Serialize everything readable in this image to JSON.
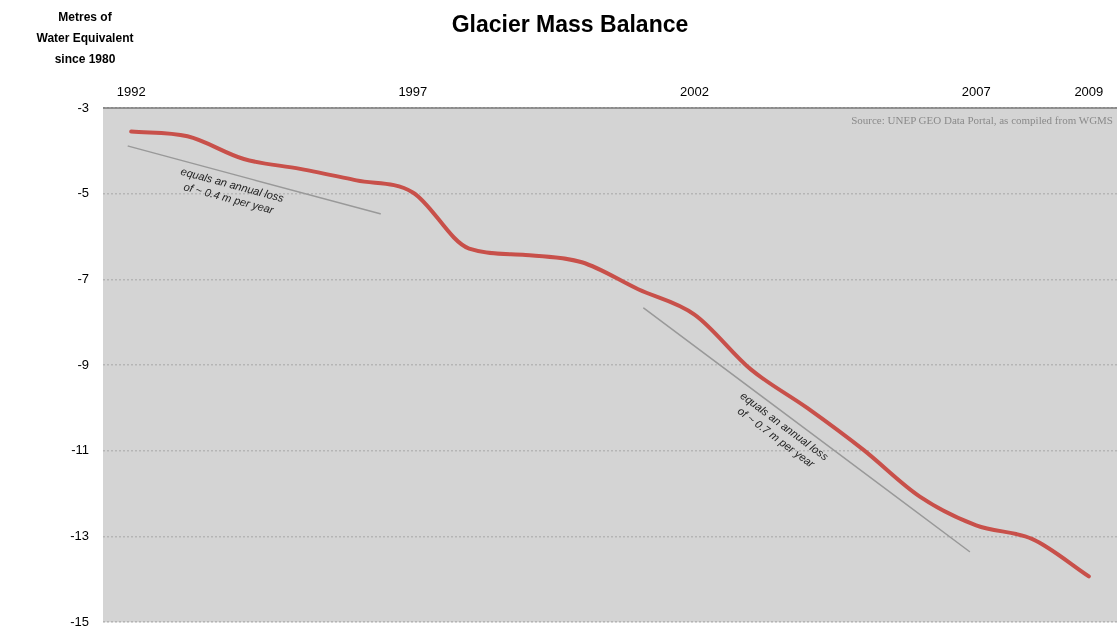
{
  "chart_data": {
    "type": "line",
    "title": "Glacier Mass Balance",
    "ylabel": "Metres of\nWater Equivalent\nsince 1980",
    "x": [
      1992,
      1993,
      1994,
      1995,
      1996,
      1997,
      1998,
      1999,
      2000,
      2001,
      2002,
      2003,
      2004,
      2005,
      2006,
      2007,
      2008,
      2009
    ],
    "series": [
      {
        "color": "#c8504a",
        "values": [
          -3.55,
          -3.66,
          -4.19,
          -4.42,
          -4.69,
          -4.97,
          -6.28,
          -6.43,
          -6.6,
          -7.23,
          -7.82,
          -9.1,
          -10.0,
          -10.98,
          -12.07,
          -12.74,
          -13.06,
          -13.93
        ]
      },
      {
        "type": "line",
        "color": "#999999",
        "x": [
          1991.95,
          1996.42
        ],
        "values": [
          -3.89,
          -5.47
        ]
      },
      {
        "type": "line",
        "color": "#999999",
        "x": [
          2001.1,
          2006.88
        ],
        "values": [
          -7.67,
          -13.35
        ]
      }
    ],
    "xlim": [
      1991.5,
      2009.5
    ],
    "xticks": [
      1992,
      1997,
      2002,
      2007,
      2009
    ],
    "ylim": [
      -15,
      -3
    ],
    "yticks": [
      -15,
      -13,
      -11,
      -9,
      -7,
      -5,
      -3
    ],
    "grid": "y",
    "marker": "none",
    "line_style": "solid",
    "annotations": [
      "equals an annual loss\nof ~ 0.4 m per year",
      "equals an annual loss\nof ~ 0.7 m per year",
      "Source: UNEP GEO Data Portal, as compiled from WGMS"
    ]
  }
}
